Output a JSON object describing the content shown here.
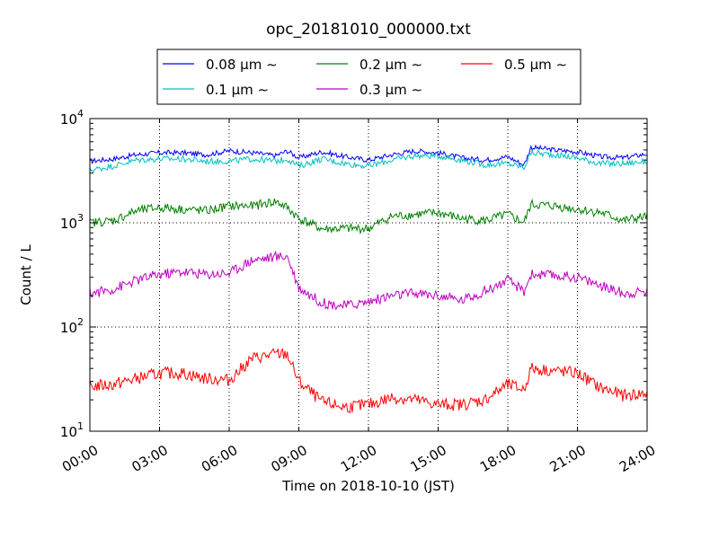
{
  "chart_data": {
    "type": "line",
    "title": "opc_20181010_000000.txt",
    "xlabel": "Time on 2018-10-10 (JST)",
    "ylabel": "Count / L",
    "yscale": "log",
    "ylim": [
      10,
      10000
    ],
    "xlim": [
      "00:00",
      "24:00"
    ],
    "grid": true,
    "legend_position": "top-center",
    "x_ticks": [
      "00:00",
      "03:00",
      "06:00",
      "09:00",
      "12:00",
      "15:00",
      "18:00",
      "21:00",
      "24:00"
    ],
    "y_ticks": [
      {
        "base": "10",
        "exp": "1"
      },
      {
        "base": "10",
        "exp": "2"
      },
      {
        "base": "10",
        "exp": "3"
      },
      {
        "base": "10",
        "exp": "4"
      }
    ],
    "x_hours": [
      0,
      1,
      2,
      3,
      4,
      5,
      6,
      7,
      8,
      8.5,
      9,
      10,
      11,
      12,
      13,
      14,
      15,
      16,
      17,
      18,
      18.7,
      19,
      20,
      21,
      22,
      23,
      24
    ],
    "series": [
      {
        "name": "0.08 μm ∼",
        "color": "#0000ff",
        "values": [
          3900,
          4100,
          4500,
          4700,
          4700,
          4500,
          4900,
          4700,
          4400,
          4900,
          4200,
          4800,
          4300,
          4000,
          4500,
          4900,
          4700,
          4200,
          4000,
          4300,
          3600,
          5300,
          5000,
          4800,
          4300,
          4200,
          4600
        ]
      },
      {
        "name": "0.1 μm ∼",
        "color": "#00bfbf",
        "values": [
          3200,
          3500,
          4000,
          4100,
          4100,
          3900,
          3900,
          4100,
          3900,
          4100,
          3500,
          4100,
          3700,
          3500,
          4000,
          4400,
          4400,
          4000,
          3600,
          3700,
          3400,
          4700,
          4500,
          4200,
          3700,
          3700,
          3900
        ]
      },
      {
        "name": "0.2 μm ∼",
        "color": "#008000",
        "values": [
          1000,
          1050,
          1300,
          1400,
          1350,
          1300,
          1450,
          1450,
          1600,
          1400,
          1100,
          870,
          880,
          880,
          1150,
          1200,
          1250,
          1100,
          1050,
          1200,
          1000,
          1500,
          1450,
          1350,
          1250,
          1050,
          1150
        ]
      },
      {
        "name": "0.3 μm ∼",
        "color": "#bf00bf",
        "values": [
          210,
          230,
          280,
          320,
          340,
          320,
          330,
          440,
          470,
          480,
          240,
          170,
          160,
          175,
          200,
          210,
          200,
          180,
          220,
          280,
          220,
          320,
          310,
          300,
          250,
          210,
          220
        ]
      },
      {
        "name": "0.5 μm ∼",
        "color": "#ff0000",
        "values": [
          27,
          28,
          32,
          36,
          36,
          32,
          31,
          50,
          55,
          55,
          30,
          19,
          17,
          18,
          21,
          20,
          18,
          18,
          20,
          28,
          25,
          40,
          38,
          36,
          26,
          22,
          23
        ]
      }
    ]
  }
}
